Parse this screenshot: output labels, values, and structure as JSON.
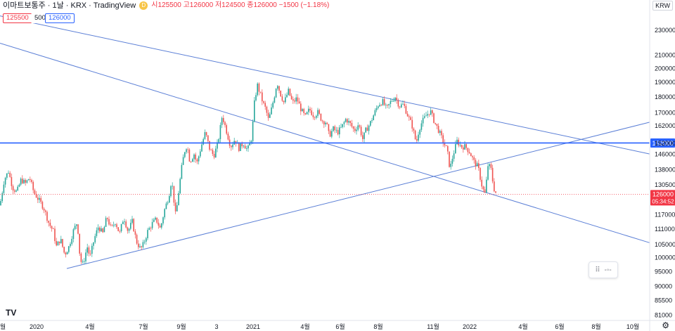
{
  "legend": {
    "title": "이마트보통주 · 1날 · KRX · TradingView",
    "source_badge": "D",
    "ohlc_text": "시125500 고126000 저124500 종126000 −1500 (−1.18%)"
  },
  "order": {
    "sell": "125500",
    "qty": "500",
    "buy": "126000"
  },
  "currency": "KRW",
  "logo": "TV",
  "colors": {
    "up": "#26a69a",
    "down": "#ef5350",
    "trend": "#5b7fd6",
    "hline": "#2962ff",
    "last": "#f23645"
  },
  "chart_data": {
    "type": "candlestick",
    "y_scale": "log",
    "ylim": [
      80000,
      250000
    ],
    "y_ticks": [
      230000,
      210000,
      200000,
      190000,
      180000,
      170000,
      162000,
      152000,
      146000,
      138000,
      130500,
      126000,
      117000,
      111000,
      105000,
      100000,
      95000,
      90000,
      85500,
      81000
    ],
    "x_ticks": [
      "월",
      "2020",
      "4월",
      "7월",
      "9월",
      "3",
      "2021",
      "4월",
      "6월",
      "8월",
      "11월",
      "2022",
      "4월",
      "6월",
      "8월",
      "10월"
    ],
    "horizontal_line": {
      "value": 152000,
      "label": "152000"
    },
    "last_price": {
      "value": 126000,
      "label": "126000",
      "countdown": "05:34:52"
    },
    "price_path": [
      [
        0,
        121000
      ],
      [
        6,
        133000
      ],
      [
        12,
        137000
      ],
      [
        18,
        129000
      ],
      [
        24,
        127000
      ],
      [
        30,
        133000
      ],
      [
        36,
        131000
      ],
      [
        42,
        134000
      ],
      [
        48,
        127000
      ],
      [
        54,
        124000
      ],
      [
        62,
        120000
      ],
      [
        70,
        113000
      ],
      [
        76,
        110000
      ],
      [
        80,
        104000
      ],
      [
        86,
        107000
      ],
      [
        92,
        101000
      ],
      [
        98,
        104000
      ],
      [
        104,
        110000
      ],
      [
        110,
        114000
      ],
      [
        114,
        99000
      ],
      [
        118,
        97500
      ],
      [
        124,
        104000
      ],
      [
        128,
        100000
      ],
      [
        134,
        107000
      ],
      [
        140,
        112000
      ],
      [
        146,
        109000
      ],
      [
        152,
        116000
      ],
      [
        158,
        111000
      ],
      [
        164,
        114000
      ],
      [
        170,
        109000
      ],
      [
        176,
        116000
      ],
      [
        182,
        110000
      ],
      [
        188,
        114000
      ],
      [
        194,
        106000
      ],
      [
        200,
        103000
      ],
      [
        204,
        105000
      ],
      [
        210,
        110000
      ],
      [
        216,
        113000
      ],
      [
        222,
        115000
      ],
      [
        228,
        111000
      ],
      [
        234,
        119000
      ],
      [
        240,
        125000
      ],
      [
        244,
        133000
      ],
      [
        250,
        116000
      ],
      [
        254,
        127000
      ],
      [
        258,
        138000
      ],
      [
        262,
        147000
      ],
      [
        266,
        151000
      ],
      [
        270,
        142000
      ],
      [
        276,
        146000
      ],
      [
        280,
        141000
      ],
      [
        286,
        150000
      ],
      [
        292,
        158000
      ],
      [
        298,
        149000
      ],
      [
        304,
        145000
      ],
      [
        310,
        152000
      ],
      [
        316,
        168000
      ],
      [
        322,
        159000
      ],
      [
        328,
        150000
      ],
      [
        334,
        154000
      ],
      [
        340,
        149000
      ],
      [
        346,
        152000
      ],
      [
        352,
        148000
      ],
      [
        358,
        155000
      ],
      [
        362,
        177000
      ],
      [
        366,
        188000
      ],
      [
        370,
        182000
      ],
      [
        374,
        176000
      ],
      [
        378,
        172000
      ],
      [
        382,
        165000
      ],
      [
        386,
        172000
      ],
      [
        390,
        180000
      ],
      [
        394,
        190000
      ],
      [
        398,
        183000
      ],
      [
        404,
        176000
      ],
      [
        410,
        184000
      ],
      [
        416,
        176000
      ],
      [
        422,
        179000
      ],
      [
        428,
        172000
      ],
      [
        434,
        167000
      ],
      [
        440,
        172000
      ],
      [
        446,
        168000
      ],
      [
        452,
        170000
      ],
      [
        458,
        165000
      ],
      [
        464,
        164000
      ],
      [
        468,
        156000
      ],
      [
        474,
        160000
      ],
      [
        480,
        158000
      ],
      [
        486,
        161000
      ],
      [
        492,
        166000
      ],
      [
        498,
        163000
      ],
      [
        504,
        159000
      ],
      [
        510,
        163000
      ],
      [
        516,
        154000
      ],
      [
        520,
        159000
      ],
      [
        526,
        163000
      ],
      [
        532,
        169000
      ],
      [
        538,
        175000
      ],
      [
        544,
        177000
      ],
      [
        550,
        172000
      ],
      [
        556,
        177000
      ],
      [
        562,
        180000
      ],
      [
        568,
        174000
      ],
      [
        574,
        175000
      ],
      [
        580,
        168000
      ],
      [
        586,
        162000
      ],
      [
        592,
        152000
      ],
      [
        596,
        160000
      ],
      [
        600,
        164000
      ],
      [
        606,
        168000
      ],
      [
        612,
        171000
      ],
      [
        618,
        164000
      ],
      [
        624,
        159000
      ],
      [
        630,
        153000
      ],
      [
        636,
        148000
      ],
      [
        640,
        138000
      ],
      [
        644,
        145000
      ],
      [
        650,
        153000
      ],
      [
        656,
        150000
      ],
      [
        662,
        150000
      ],
      [
        668,
        147000
      ],
      [
        674,
        142000
      ],
      [
        680,
        139000
      ],
      [
        686,
        129000
      ],
      [
        690,
        126000
      ],
      [
        694,
        140000
      ],
      [
        698,
        139000
      ],
      [
        702,
        129000
      ],
      [
        706,
        126000
      ]
    ],
    "trendlines": [
      {
        "name": "upper-resistance",
        "points": [
          [
            0,
            242000
          ],
          [
            924,
            146000
          ]
        ]
      },
      {
        "name": "middle-falling",
        "points": [
          [
            0,
            219000
          ],
          [
            924,
            105500
          ]
        ]
      },
      {
        "name": "rising-support",
        "points": [
          [
            95,
            96000
          ],
          [
            924,
            164000
          ]
        ]
      }
    ]
  }
}
